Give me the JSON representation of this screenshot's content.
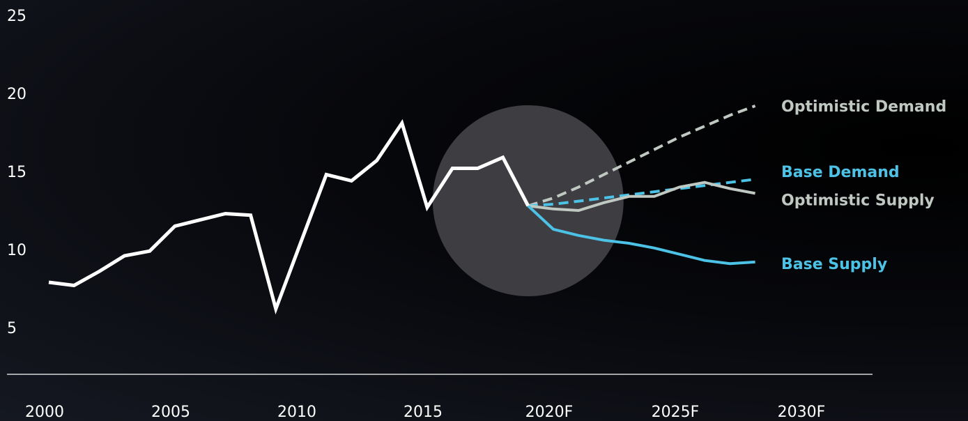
{
  "chart_data": {
    "type": "line",
    "title": "",
    "xlabel": "",
    "ylabel": "",
    "ylim": [
      0,
      25
    ],
    "xlim": [
      2000,
      2031
    ],
    "grid": false,
    "y_ticks": [
      "5",
      "10",
      "15",
      "20",
      "25"
    ],
    "x_ticks": [
      {
        "label": "2000",
        "x": 2000
      },
      {
        "label": "2005",
        "x": 2005
      },
      {
        "label": "2010",
        "x": 2010
      },
      {
        "label": "2015",
        "x": 2015
      },
      {
        "label": "2020F",
        "x": 2020
      },
      {
        "label": "2025F",
        "x": 2025
      },
      {
        "label": "2030F",
        "x": 2030
      }
    ],
    "series": [
      {
        "key": "historical",
        "color": "#ffffff",
        "style": "solid",
        "x": [
          2000,
          2001,
          2002,
          2003,
          2004,
          2005,
          2006,
          2007,
          2008,
          2009,
          2010,
          2011,
          2012,
          2013,
          2014,
          2015,
          2016,
          2017,
          2018,
          2019
        ],
        "values": [
          7.9,
          7.7,
          8.6,
          9.6,
          9.9,
          11.5,
          11.9,
          12.3,
          12.2,
          6.2,
          10.5,
          14.8,
          14.4,
          15.7,
          18.1,
          12.7,
          15.2,
          15.2,
          15.9,
          12.8
        ]
      },
      {
        "key": "optimistic-demand",
        "name": "Optimistic Demand",
        "color": "#c0c8c2",
        "style": "dashed",
        "x": [
          2019,
          2020,
          2021,
          2022,
          2023,
          2024,
          2025,
          2026,
          2027,
          2028
        ],
        "values": [
          12.8,
          13.3,
          14.0,
          14.8,
          15.6,
          16.4,
          17.2,
          17.9,
          18.6,
          19.2
        ]
      },
      {
        "key": "base-demand",
        "name": "Base Demand",
        "color": "#4cc3e6",
        "style": "dashed",
        "x": [
          2019,
          2020,
          2021,
          2022,
          2023,
          2024,
          2025,
          2026,
          2027,
          2028
        ],
        "values": [
          12.8,
          12.9,
          13.1,
          13.3,
          13.5,
          13.7,
          13.9,
          14.1,
          14.3,
          14.5
        ]
      },
      {
        "key": "optimistic-supply",
        "name": "Optimistic Supply",
        "color": "#c0c8c2",
        "style": "solid",
        "x": [
          2019,
          2020,
          2021,
          2022,
          2023,
          2024,
          2025,
          2026,
          2027,
          2028
        ],
        "values": [
          12.8,
          12.6,
          12.5,
          13.0,
          13.4,
          13.4,
          14.0,
          14.3,
          13.9,
          13.6
        ]
      },
      {
        "key": "base-supply",
        "name": "Base Supply",
        "color": "#4cc3e6",
        "style": "solid",
        "x": [
          2019,
          2020,
          2021,
          2022,
          2023,
          2024,
          2025,
          2026,
          2027,
          2028
        ],
        "values": [
          12.8,
          11.3,
          10.9,
          10.6,
          10.4,
          10.1,
          9.7,
          9.3,
          9.1,
          9.2
        ]
      }
    ],
    "legend": [
      {
        "key": "optimistic-demand",
        "label": "Optimistic Demand",
        "color": "#c0c8c2",
        "value_at": 19.2
      },
      {
        "key": "base-demand",
        "label": "Base Demand",
        "color": "#4cc3e6",
        "value_at": 15.0
      },
      {
        "key": "optimistic-supply",
        "label": "Optimistic Supply",
        "color": "#c0c8c2",
        "value_at": 13.2
      },
      {
        "key": "base-supply",
        "label": "Base Supply",
        "color": "#4cc3e6",
        "value_at": 9.1
      }
    ],
    "highlight": {
      "x": 2019,
      "y": 12.8,
      "color": "#3d3d42"
    }
  }
}
